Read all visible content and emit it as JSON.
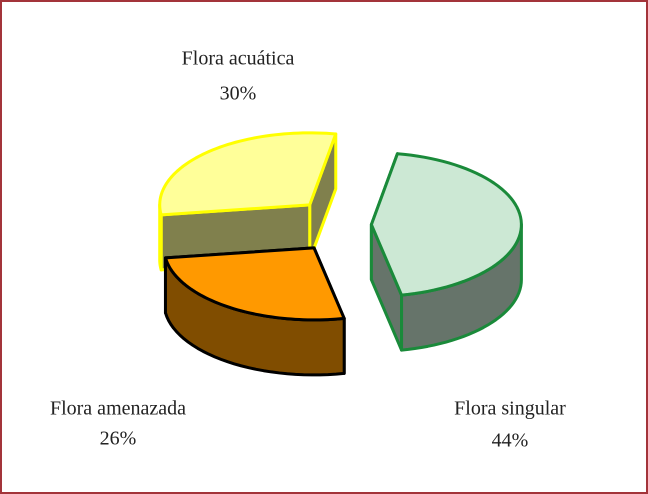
{
  "chart_data": {
    "type": "pie3d",
    "categories": [
      "Flora acuática",
      "Flora singular",
      "Flora amenazada"
    ],
    "values": [
      30,
      44,
      26
    ],
    "value_labels": [
      "30%",
      "44%",
      "26%"
    ],
    "colors": [
      "#ffff99",
      "#cce8d4",
      "#ff9900"
    ],
    "edge_colors": [
      "#ffff00",
      "#1a8a3a",
      "#000000"
    ]
  }
}
